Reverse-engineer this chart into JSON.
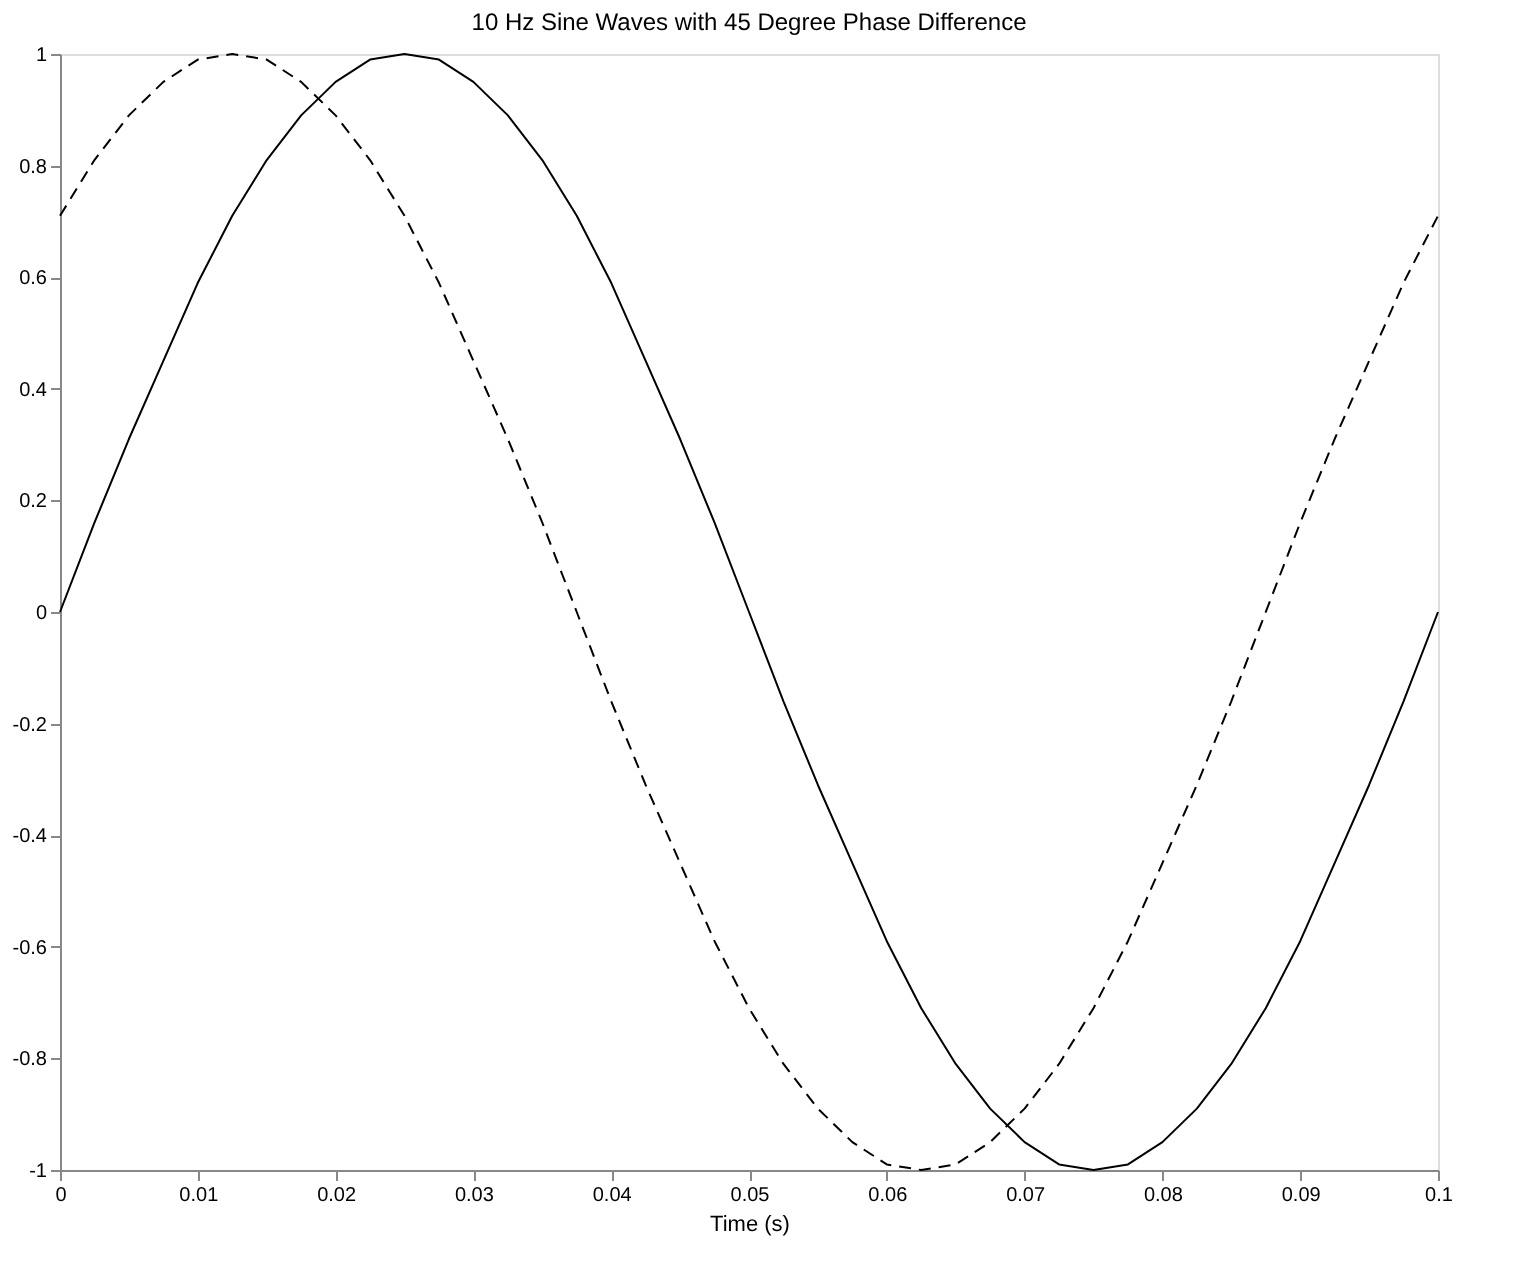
{
  "chart_data": {
    "type": "line",
    "title": "10 Hz Sine Waves with 45 Degree Phase Difference",
    "xlabel": "Time (s)",
    "x": [
      0,
      0.0025,
      0.005,
      0.0075,
      0.01,
      0.0125,
      0.015,
      0.0175,
      0.02,
      0.0225,
      0.025,
      0.0275,
      0.03,
      0.0325,
      0.035,
      0.0375,
      0.04,
      0.0425,
      0.045,
      0.0475,
      0.05,
      0.0525,
      0.055,
      0.0575,
      0.06,
      0.0625,
      0.065,
      0.0675,
      0.07,
      0.0725,
      0.075,
      0.0775,
      0.08,
      0.0825,
      0.085,
      0.0875,
      0.09,
      0.0925,
      0.095,
      0.0975,
      0.1
    ],
    "series": [
      {
        "color": "#000000",
        "line_style": "solid",
        "values": [
          0,
          0.16,
          0.31,
          0.45,
          0.59,
          0.71,
          0.81,
          0.89,
          0.95,
          0.99,
          1,
          0.99,
          0.95,
          0.89,
          0.81,
          0.71,
          0.59,
          0.45,
          0.31,
          0.16,
          0,
          -0.16,
          -0.31,
          -0.45,
          -0.59,
          -0.71,
          -0.81,
          -0.89,
          -0.95,
          -0.99,
          -1,
          -0.99,
          -0.95,
          -0.89,
          -0.81,
          -0.71,
          -0.59,
          -0.45,
          -0.31,
          -0.16,
          0
        ]
      },
      {
        "color": "#000000",
        "line_style": "dashed",
        "values": [
          0.71,
          0.81,
          0.89,
          0.95,
          0.99,
          1,
          0.99,
          0.95,
          0.89,
          0.81,
          0.71,
          0.59,
          0.45,
          0.31,
          0.16,
          0,
          -0.16,
          -0.31,
          -0.45,
          -0.59,
          -0.71,
          -0.81,
          -0.89,
          -0.95,
          -0.99,
          -1,
          -0.99,
          -0.95,
          -0.89,
          -0.81,
          -0.71,
          -0.59,
          -0.45,
          -0.31,
          -0.16,
          0,
          0.16,
          0.31,
          0.45,
          0.59,
          0.71
        ]
      }
    ],
    "xlim": [
      0,
      0.1
    ],
    "xticks": [
      0,
      0.01,
      0.02,
      0.03,
      0.04,
      0.05,
      0.06,
      0.07,
      0.08,
      0.09,
      0.1
    ],
    "ylim": [
      -1,
      1
    ],
    "yticks": [
      -1,
      -0.8,
      -0.6,
      -0.4,
      -0.2,
      0,
      0.2,
      0.4,
      0.6,
      0.8,
      1
    ],
    "grid": false,
    "marker": "none"
  }
}
